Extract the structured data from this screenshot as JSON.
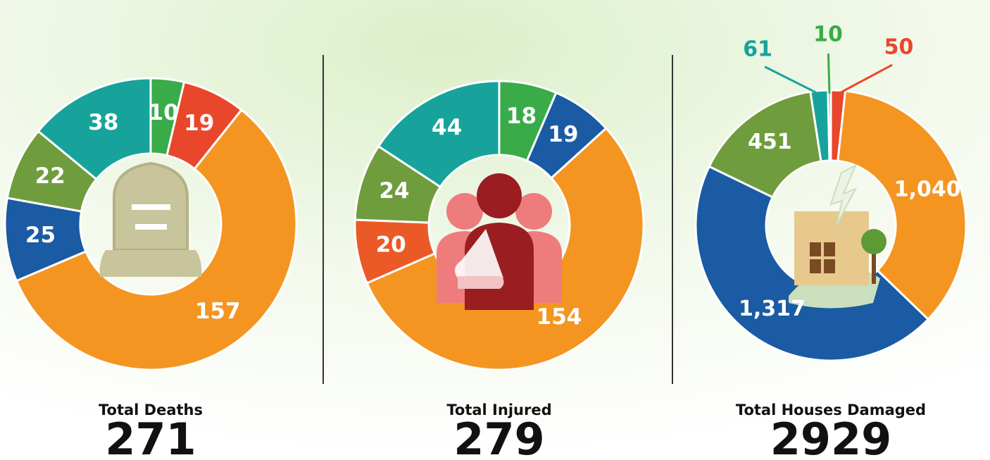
{
  "chart_data": [
    {
      "type": "pie",
      "donut": true,
      "title": "Total Deaths",
      "total": 271,
      "values": [
        10,
        19,
        157,
        25,
        22,
        38
      ],
      "colors": [
        "#3aab49",
        "#e9472b",
        "#f49522",
        "#1a5ba3",
        "#6f9c3d",
        "#17a39b"
      ]
    },
    {
      "type": "pie",
      "donut": true,
      "title": "Total Injured",
      "total": 279,
      "values": [
        18,
        19,
        154,
        20,
        24,
        44
      ],
      "colors": [
        "#3aab49",
        "#1a5ba3",
        "#f49522",
        "#eb5a26",
        "#6f9c3d",
        "#17a39b"
      ]
    },
    {
      "type": "pie",
      "donut": true,
      "title": "Total Houses Damaged",
      "total": 2929,
      "values": [
        50,
        1040,
        1317,
        451,
        61,
        10
      ],
      "value_labels": [
        "50",
        "1,040",
        "1,317",
        "451",
        "61",
        "10"
      ],
      "colors": [
        "#e9472b",
        "#f49522",
        "#1a5ba3",
        "#6f9c3d",
        "#17a39b",
        "#3aab49"
      ]
    }
  ]
}
